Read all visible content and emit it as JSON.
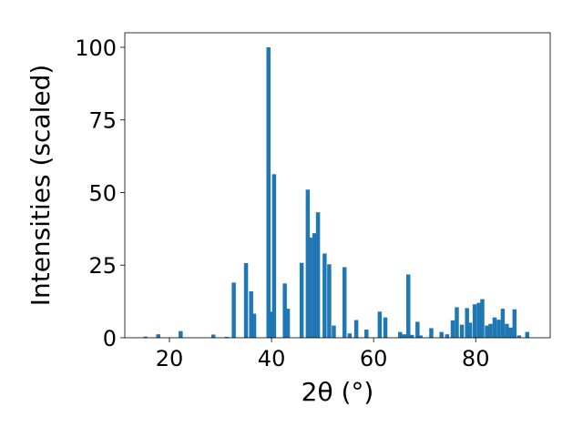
{
  "chart_data": {
    "type": "bar",
    "xlabel": "2θ (°)",
    "ylabel": "Intensities (scaled)",
    "xlim": [
      11.25,
      94.6
    ],
    "ylim": [
      0,
      105
    ],
    "xticks": [
      20,
      40,
      60,
      80
    ],
    "yticks": [
      0,
      25,
      50,
      75,
      100
    ],
    "bar_width": 0.8,
    "bar_color": "#1f77b4",
    "grid": false,
    "x": [
      15.3,
      17.8,
      22.2,
      28.6,
      31.2,
      32.6,
      35.0,
      36.0,
      36.6,
      39.4,
      39.9,
      40.5,
      42.6,
      43.2,
      45.9,
      47.1,
      47.6,
      48.4,
      49.1,
      50.4,
      51.3,
      52.2,
      54.3,
      55.3,
      56.6,
      58.6,
      61.2,
      62.3,
      65.2,
      66.0,
      66.8,
      67.5,
      68.6,
      69.2,
      71.3,
      73.3,
      74.4,
      75.5,
      76.3,
      77.3,
      78.3,
      78.9,
      79.8,
      80.6,
      81.3,
      82.2,
      82.9,
      83.7,
      84.5,
      85.3,
      86.1,
      86.8,
      87.6,
      88.5,
      90.1
    ],
    "values": [
      0.4,
      1.2,
      2.3,
      1.1,
      0.3,
      19.0,
      25.7,
      16.0,
      8.3,
      100.0,
      9.0,
      56.3,
      18.7,
      10.0,
      25.8,
      51.0,
      34.5,
      36.0,
      43.2,
      29.0,
      25.3,
      4.2,
      24.3,
      1.5,
      6.1,
      2.8,
      9.0,
      7.0,
      2.0,
      1.2,
      21.8,
      1.0,
      5.5,
      0.8,
      3.3,
      2.0,
      1.2,
      6.0,
      10.5,
      4.5,
      10.2,
      5.2,
      11.5,
      12.0,
      13.3,
      4.2,
      4.8,
      7.0,
      6.2,
      10.0,
      4.8,
      3.5,
      9.8,
      0.8,
      2.0
    ]
  }
}
